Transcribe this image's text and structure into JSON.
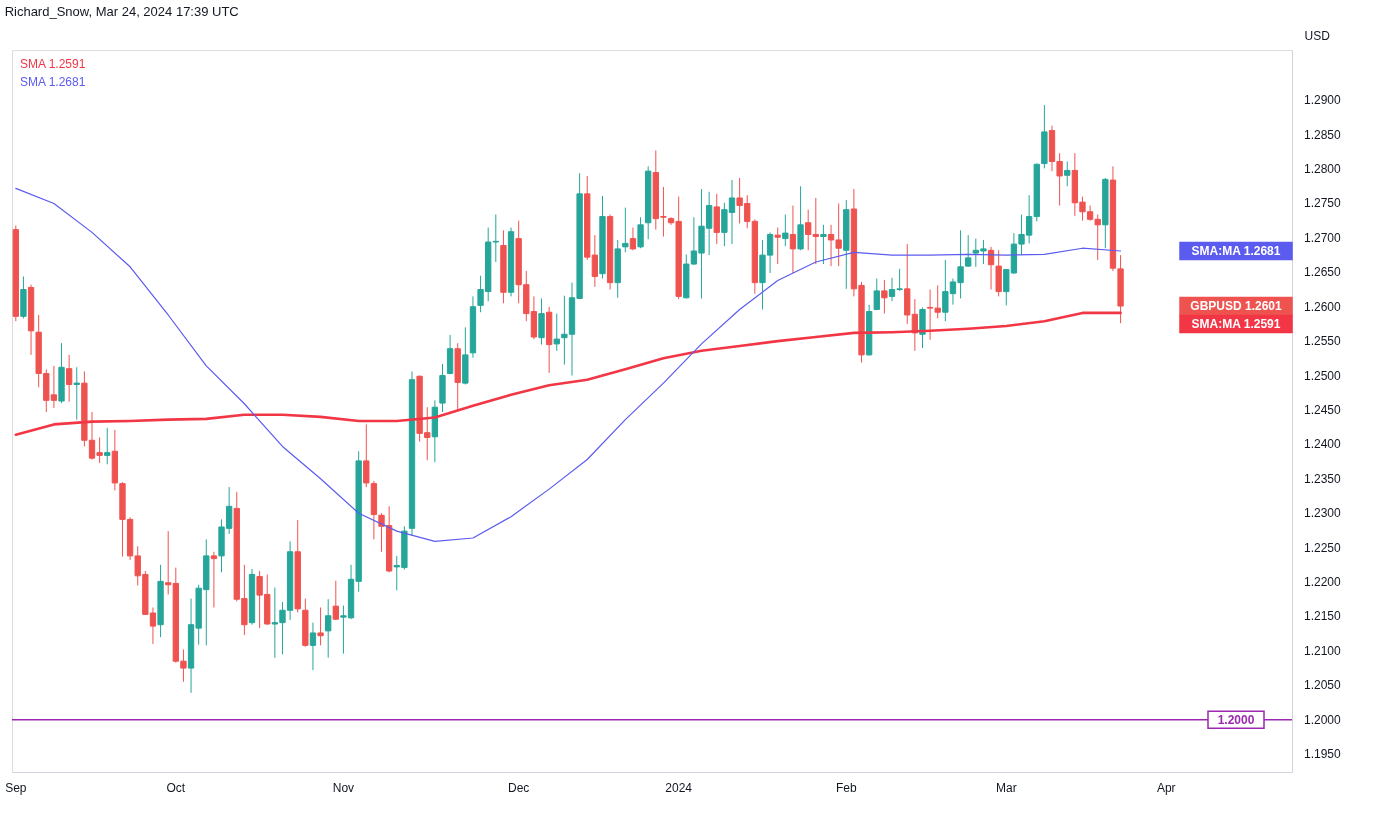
{
  "chart_data": {
    "type": "candlestick",
    "title": "Richard_Snow, Mar 24, 2024 17:39 UTC",
    "ylabel": "USD",
    "categories": [
      "Sep",
      null,
      null,
      null,
      null,
      null,
      null,
      null,
      null,
      null,
      null,
      null,
      null,
      null,
      null,
      null,
      null,
      null,
      null,
      null,
      null,
      "Oct",
      null,
      null,
      null,
      null,
      null,
      null,
      null,
      null,
      null,
      null,
      null,
      null,
      null,
      null,
      null,
      null,
      null,
      null,
      null,
      null,
      null,
      "Nov",
      null,
      null,
      null,
      null,
      null,
      null,
      null,
      null,
      null,
      null,
      null,
      null,
      null,
      null,
      null,
      null,
      null,
      null,
      null,
      null,
      null,
      null,
      "Dec",
      null,
      null,
      null,
      null,
      null,
      null,
      null,
      null,
      null,
      null,
      null,
      null,
      null,
      null,
      null,
      null,
      null,
      null,
      null,
      null,
      "2024",
      null,
      null,
      null,
      null,
      null,
      null,
      null,
      null,
      null,
      null,
      null,
      null,
      null,
      null,
      null,
      null,
      null,
      null,
      null,
      null,
      null,
      "Feb",
      null,
      null,
      null,
      null,
      null,
      null,
      null,
      null,
      null,
      null,
      null,
      null,
      null,
      null,
      null,
      null,
      null,
      null,
      null,
      null,
      "Mar",
      null,
      null,
      null,
      null,
      null,
      null,
      null,
      null,
      null,
      null,
      null,
      null,
      null,
      null,
      null,
      null,
      null,
      null,
      null,
      null,
      "Apr",
      null,
      null,
      null,
      null,
      null,
      null,
      null,
      null,
      null,
      null,
      null,
      null,
      null,
      null,
      null,
      null
    ],
    "ohlc": [
      [
        1.2712,
        1.2718,
        1.2579,
        1.2586
      ],
      [
        1.2586,
        1.2644,
        1.2583,
        1.2625
      ],
      [
        1.2628,
        1.2632,
        1.253,
        1.2565
      ],
      [
        1.2563,
        1.2588,
        1.2483,
        1.2503
      ],
      [
        1.2503,
        1.2509,
        1.2447,
        1.2464
      ],
      [
        1.2472,
        1.2514,
        1.2453,
        1.2464
      ],
      [
        1.2463,
        1.2547,
        1.246,
        1.2512
      ],
      [
        1.251,
        1.253,
        1.2462,
        1.2487
      ],
      [
        1.2487,
        1.2512,
        1.2436,
        1.2489
      ],
      [
        1.2489,
        1.2506,
        1.2397,
        1.2406
      ],
      [
        1.2406,
        1.2447,
        1.2378,
        1.238
      ],
      [
        1.2388,
        1.241,
        1.2373,
        1.2384
      ],
      [
        1.2384,
        1.2424,
        1.2371,
        1.2388
      ],
      [
        1.239,
        1.2421,
        1.2333,
        1.2344
      ],
      [
        1.2343,
        1.2345,
        1.2237,
        1.2291
      ],
      [
        1.2291,
        1.2294,
        1.2232,
        1.2238
      ],
      [
        1.2238,
        1.2252,
        1.2195,
        1.2209
      ],
      [
        1.2211,
        1.2216,
        1.2152,
        1.2153
      ],
      [
        1.2155,
        1.2163,
        1.211,
        1.2136
      ],
      [
        1.2138,
        1.2225,
        1.212,
        1.2201
      ],
      [
        1.2199,
        1.2274,
        1.2182,
        1.2196
      ],
      [
        1.2198,
        1.2221,
        1.2083,
        1.2085
      ],
      [
        1.2085,
        1.2102,
        1.2055,
        1.2075
      ],
      [
        1.2075,
        1.2176,
        1.2039,
        1.2138
      ],
      [
        1.2133,
        1.2196,
        1.2109,
        1.2191
      ],
      [
        1.2189,
        1.2262,
        1.2108,
        1.2238
      ],
      [
        1.2238,
        1.2244,
        1.2163,
        1.2234
      ],
      [
        1.2238,
        1.2291,
        1.2214,
        1.228
      ],
      [
        1.2278,
        1.2338,
        1.227,
        1.231
      ],
      [
        1.2307,
        1.2331,
        1.2172,
        1.2175
      ],
      [
        1.2176,
        1.2225,
        1.2123,
        1.2138
      ],
      [
        1.2141,
        1.2219,
        1.2138,
        1.2211
      ],
      [
        1.2208,
        1.2216,
        1.2133,
        1.2181
      ],
      [
        1.2182,
        1.2211,
        1.2138,
        1.2139
      ],
      [
        1.2139,
        1.2192,
        1.209,
        1.2141
      ],
      [
        1.2141,
        1.2171,
        1.2095,
        1.2159
      ],
      [
        1.2159,
        1.2259,
        1.2145,
        1.2244
      ],
      [
        1.2244,
        1.229,
        1.2156,
        1.2161
      ],
      [
        1.2159,
        1.2176,
        1.2106,
        1.2108
      ],
      [
        1.2108,
        1.2141,
        1.2072,
        1.2126
      ],
      [
        1.2126,
        1.2163,
        1.2108,
        1.2122
      ],
      [
        1.2129,
        1.2175,
        1.209,
        1.2151
      ],
      [
        1.2165,
        1.2202,
        1.2145,
        1.2146
      ],
      [
        1.2149,
        1.2166,
        1.2096,
        1.2151
      ],
      [
        1.2148,
        1.2225,
        1.2146,
        1.2204
      ],
      [
        1.2201,
        1.239,
        1.2186,
        1.2376
      ],
      [
        1.2376,
        1.2429,
        1.2338,
        1.2344
      ],
      [
        1.2343,
        1.2347,
        1.2262,
        1.2298
      ],
      [
        1.2297,
        1.23,
        1.2244,
        1.2281
      ],
      [
        1.2282,
        1.231,
        1.2214,
        1.2216
      ],
      [
        1.2222,
        1.2238,
        1.2188,
        1.2224
      ],
      [
        1.2221,
        1.2281,
        1.2218,
        1.2274
      ],
      [
        1.2278,
        1.2506,
        1.2267,
        1.2494
      ],
      [
        1.2499,
        1.25,
        1.2404,
        1.2416
      ],
      [
        1.2417,
        1.2454,
        1.2377,
        1.241
      ],
      [
        1.2411,
        1.2464,
        1.2374,
        1.2454
      ],
      [
        1.246,
        1.2517,
        1.2447,
        1.25
      ],
      [
        1.2503,
        1.2559,
        1.2502,
        1.2539
      ],
      [
        1.2539,
        1.2547,
        1.245,
        1.249
      ],
      [
        1.2489,
        1.257,
        1.2487,
        1.253
      ],
      [
        1.2533,
        1.2615,
        1.2526,
        1.26
      ],
      [
        1.2602,
        1.2645,
        1.2592,
        1.2625
      ],
      [
        1.2622,
        1.2715,
        1.2608,
        1.2694
      ],
      [
        1.2694,
        1.2734,
        1.2665,
        1.2695
      ],
      [
        1.2689,
        1.2711,
        1.2605,
        1.2621
      ],
      [
        1.2621,
        1.2715,
        1.2615,
        1.2709
      ],
      [
        1.2699,
        1.2725,
        1.2605,
        1.2632
      ],
      [
        1.2632,
        1.2652,
        1.2579,
        1.259
      ],
      [
        1.2593,
        1.2615,
        1.2553,
        1.2556
      ],
      [
        1.2555,
        1.2612,
        1.2545,
        1.259
      ],
      [
        1.2592,
        1.26,
        1.2504,
        1.2545
      ],
      [
        1.2546,
        1.259,
        1.2536,
        1.2553
      ],
      [
        1.2555,
        1.2616,
        1.2516,
        1.256
      ],
      [
        1.256,
        1.2635,
        1.25,
        1.2613
      ],
      [
        1.2612,
        1.2794,
        1.2611,
        1.2764
      ],
      [
        1.2764,
        1.279,
        1.2668,
        1.2672
      ],
      [
        1.2675,
        1.2704,
        1.2629,
        1.2644
      ],
      [
        1.2648,
        1.2761,
        1.2641,
        1.2731
      ],
      [
        1.2731,
        1.2734,
        1.2625,
        1.2635
      ],
      [
        1.2635,
        1.2697,
        1.2613,
        1.2684
      ],
      [
        1.2687,
        1.2744,
        1.2679,
        1.2692
      ],
      [
        1.2699,
        1.2715,
        1.2682,
        1.2684
      ],
      [
        1.2687,
        1.273,
        1.2685,
        1.2719
      ],
      [
        1.2722,
        1.2804,
        1.2698,
        1.2797
      ],
      [
        1.2795,
        1.2827,
        1.2712,
        1.2728
      ],
      [
        1.2731,
        1.2774,
        1.2702,
        1.273
      ],
      [
        1.2728,
        1.273,
        1.2719,
        1.2722
      ],
      [
        1.2724,
        1.276,
        1.2611,
        1.2615
      ],
      [
        1.2613,
        1.2676,
        1.2612,
        1.2662
      ],
      [
        1.2662,
        1.273,
        1.2661,
        1.2681
      ],
      [
        1.2678,
        1.2771,
        1.2612,
        1.2717
      ],
      [
        1.2714,
        1.2767,
        1.2675,
        1.2747
      ],
      [
        1.2745,
        1.2764,
        1.2691,
        1.2708
      ],
      [
        1.2708,
        1.2751,
        1.2688,
        1.2741
      ],
      [
        1.2737,
        1.2784,
        1.2691,
        1.2758
      ],
      [
        1.2758,
        1.2787,
        1.2721,
        1.2747
      ],
      [
        1.275,
        1.2762,
        1.2714,
        1.2724
      ],
      [
        1.2724,
        1.2727,
        1.2619,
        1.2635
      ],
      [
        1.2635,
        1.2697,
        1.2596,
        1.2675
      ],
      [
        1.2675,
        1.2708,
        1.2649,
        1.2705
      ],
      [
        1.2704,
        1.2715,
        1.2662,
        1.2701
      ],
      [
        1.2699,
        1.2734,
        1.2688,
        1.2707
      ],
      [
        1.2705,
        1.2747,
        1.2649,
        1.2684
      ],
      [
        1.2684,
        1.2775,
        1.2682,
        1.2719
      ],
      [
        1.2722,
        1.2741,
        1.2682,
        1.2705
      ],
      [
        1.2705,
        1.2758,
        1.2662,
        1.2702
      ],
      [
        1.2702,
        1.2719,
        1.2662,
        1.2705
      ],
      [
        1.2705,
        1.2719,
        1.2659,
        1.2697
      ],
      [
        1.2697,
        1.275,
        1.2659,
        1.2685
      ],
      [
        1.2682,
        1.2755,
        1.2626,
        1.2741
      ],
      [
        1.2742,
        1.2771,
        1.2615,
        1.2626
      ],
      [
        1.2631,
        1.2636,
        1.2519,
        1.253
      ],
      [
        1.253,
        1.2603,
        1.2529,
        1.2593
      ],
      [
        1.2596,
        1.2641,
        1.2595,
        1.2623
      ],
      [
        1.2623,
        1.2639,
        1.259,
        1.2613
      ],
      [
        1.2615,
        1.2642,
        1.2608,
        1.2625
      ],
      [
        1.2625,
        1.2655,
        1.2623,
        1.2626
      ],
      [
        1.2626,
        1.2691,
        1.2575,
        1.2588
      ],
      [
        1.2589,
        1.2611,
        1.2536,
        1.2562
      ],
      [
        1.256,
        1.2599,
        1.254,
        1.2596
      ],
      [
        1.2599,
        1.2625,
        1.2552,
        1.2598
      ],
      [
        1.2598,
        1.2631,
        1.2583,
        1.2592
      ],
      [
        1.2592,
        1.2668,
        1.2579,
        1.2622
      ],
      [
        1.2619,
        1.2641,
        1.2603,
        1.2636
      ],
      [
        1.2635,
        1.2711,
        1.2612,
        1.2658
      ],
      [
        1.2659,
        1.2704,
        1.2658,
        1.2671
      ],
      [
        1.2678,
        1.2699,
        1.2658,
        1.2682
      ],
      [
        1.2681,
        1.2697,
        1.2662,
        1.2684
      ],
      [
        1.2682,
        1.2687,
        1.2625,
        1.2661
      ],
      [
        1.2659,
        1.2682,
        1.2615,
        1.2622
      ],
      [
        1.2622,
        1.2655,
        1.2602,
        1.2654
      ],
      [
        1.2649,
        1.2707,
        1.2648,
        1.2691
      ],
      [
        1.2691,
        1.2734,
        1.2675,
        1.2705
      ],
      [
        1.2704,
        1.2762,
        1.2692,
        1.2731
      ],
      [
        1.2731,
        1.2808,
        1.2724,
        1.2807
      ],
      [
        1.2808,
        1.2893,
        1.2801,
        1.2854
      ],
      [
        1.2856,
        1.2863,
        1.2797,
        1.2811
      ],
      [
        1.2811,
        1.2823,
        1.2747,
        1.279
      ],
      [
        1.2791,
        1.2811,
        1.2775,
        1.2798
      ],
      [
        1.2798,
        1.2823,
        1.2732,
        1.2751
      ],
      [
        1.2752,
        1.276,
        1.2725,
        1.2738
      ],
      [
        1.2738,
        1.2747,
        1.2725,
        1.2727
      ],
      [
        1.2727,
        1.2734,
        1.2668,
        1.2719
      ],
      [
        1.2719,
        1.2787,
        1.2685,
        1.2785
      ],
      [
        1.2784,
        1.2804,
        1.2652,
        1.2656
      ],
      [
        1.2655,
        1.2675,
        1.2576,
        1.2601
      ],
      null,
      null,
      null,
      null,
      null,
      null,
      null,
      null,
      null,
      null,
      null,
      null,
      null,
      null,
      null,
      null,
      null,
      null,
      null,
      null,
      null,
      null
    ],
    "colors": [
      "#ef5350",
      "#26a69a",
      "#ef5350",
      "#ef5350",
      "#ef5350",
      "#ef5350",
      "#26a69a",
      "#ef5350",
      "#26a69a",
      "#ef5350",
      "#ef5350",
      "#ef5350",
      "#26a69a",
      "#ef5350",
      "#ef5350",
      "#ef5350",
      "#ef5350",
      "#ef5350",
      "#ef5350",
      "#26a69a",
      "#ef5350",
      "#ef5350",
      "#ef5350",
      "#26a69a",
      "#26a69a",
      "#26a69a",
      "#ef5350",
      "#26a69a",
      "#26a69a",
      "#ef5350",
      "#ef5350",
      "#26a69a",
      "#ef5350",
      "#ef5350",
      "#26a69a",
      "#26a69a",
      "#26a69a",
      "#ef5350",
      "#ef5350",
      "#26a69a",
      "#ef5350",
      "#26a69a",
      "#ef5350",
      "#26a69a",
      "#26a69a",
      "#26a69a",
      "#ef5350",
      "#ef5350",
      "#ef5350",
      "#ef5350",
      "#26a69a",
      "#26a69a",
      "#26a69a",
      "#ef5350",
      "#ef5350",
      "#26a69a",
      "#26a69a",
      "#26a69a",
      "#ef5350",
      "#26a69a",
      "#26a69a",
      "#26a69a",
      "#26a69a",
      "#26a69a",
      "#ef5350",
      "#26a69a",
      "#ef5350",
      "#ef5350",
      "#ef5350",
      "#26a69a",
      "#ef5350",
      "#26a69a",
      "#26a69a",
      "#26a69a",
      "#26a69a",
      "#ef5350",
      "#ef5350",
      "#26a69a",
      "#ef5350",
      "#26a69a",
      "#26a69a",
      "#ef5350",
      "#26a69a",
      "#26a69a",
      "#ef5350",
      "#ef5350",
      "#ef5350",
      "#ef5350",
      "#26a69a",
      "#26a69a",
      "#26a69a",
      "#26a69a",
      "#ef5350",
      "#26a69a",
      "#26a69a",
      "#ef5350",
      "#ef5350",
      "#ef5350",
      "#26a69a",
      "#26a69a",
      "#ef5350",
      "#26a69a",
      "#ef5350",
      "#26a69a",
      "#ef5350",
      "#ef5350",
      "#26a69a",
      "#ef5350",
      "#ef5350",
      "#26a69a",
      "#ef5350",
      "#ef5350",
      "#26a69a",
      "#26a69a",
      "#ef5350",
      "#26a69a",
      "#26a69a",
      "#ef5350",
      "#ef5350",
      "#26a69a",
      "#ef5350",
      "#ef5350",
      "#26a69a",
      "#26a69a",
      "#26a69a",
      "#26a69a",
      "#26a69a",
      "#26a69a",
      "#ef5350",
      "#ef5350",
      "#26a69a",
      "#26a69a",
      "#26a69a",
      "#26a69a",
      "#26a69a",
      "#26a69a",
      "#ef5350",
      "#ef5350",
      "#26a69a",
      "#ef5350",
      "#ef5350",
      "#ef5350",
      "#ef5350",
      "#26a69a",
      "#ef5350",
      "#ef5350",
      null,
      null,
      null,
      null,
      null,
      null,
      null,
      null,
      null,
      null,
      null,
      null,
      null,
      null,
      null,
      null,
      null,
      null,
      null,
      null,
      null,
      null
    ],
    "series": [
      {
        "name": "SMA 1.2591",
        "type": "line",
        "color": "#f23645",
        "values": [
          1.2414,
          null,
          null,
          null,
          null,
          1.2429,
          null,
          null,
          null,
          null,
          1.2433,
          null,
          null,
          null,
          null,
          1.2434,
          null,
          null,
          null,
          null,
          1.2436,
          null,
          null,
          null,
          null,
          1.2437,
          null,
          null,
          null,
          null,
          1.2443,
          null,
          null,
          null,
          null,
          1.2443,
          null,
          null,
          null,
          null,
          1.244,
          null,
          null,
          null,
          null,
          1.2434,
          null,
          null,
          null,
          null,
          1.2434,
          null,
          null,
          null,
          null,
          1.2439,
          null,
          null,
          null,
          null,
          1.2456,
          null,
          null,
          null,
          null,
          1.2472,
          null,
          null,
          null,
          null,
          1.2486,
          null,
          null,
          null,
          null,
          1.2494,
          null,
          null,
          null,
          null,
          1.2509,
          null,
          null,
          null,
          null,
          1.2525,
          null,
          null,
          null,
          null,
          1.2536,
          null,
          null,
          null,
          null,
          1.2543,
          null,
          null,
          null,
          null,
          1.255,
          null,
          null,
          null,
          null,
          1.2556,
          null,
          null,
          null,
          null,
          1.2562,
          null,
          null,
          null,
          null,
          1.2563,
          null,
          null,
          null,
          null,
          1.2565,
          null,
          null,
          null,
          null,
          1.2568,
          null,
          null,
          null,
          null,
          1.2572,
          null,
          null,
          null,
          null,
          1.2579,
          null,
          null,
          null,
          null,
          1.2591,
          null,
          null,
          null,
          null,
          1.2591,
          null,
          null,
          null,
          null,
          null,
          null,
          null,
          null,
          null,
          null,
          null,
          null,
          null,
          null,
          null,
          null,
          null,
          null,
          null,
          null,
          null,
          null
        ]
      },
      {
        "name": "SMA 1.2681",
        "type": "line",
        "color": "#5b5bf0",
        "values": [
          1.2772,
          null,
          null,
          null,
          null,
          1.275,
          null,
          null,
          null,
          null,
          1.2708,
          null,
          null,
          null,
          null,
          1.2658,
          null,
          null,
          null,
          null,
          1.2588,
          null,
          null,
          null,
          null,
          1.2514,
          null,
          null,
          null,
          null,
          1.2459,
          null,
          null,
          null,
          null,
          1.2397,
          null,
          null,
          null,
          null,
          1.235,
          null,
          null,
          null,
          null,
          1.23,
          null,
          null,
          null,
          null,
          1.2274,
          null,
          null,
          null,
          null,
          1.2259,
          null,
          null,
          null,
          null,
          1.2264,
          null,
          null,
          null,
          null,
          1.2295,
          null,
          null,
          null,
          null,
          1.2335,
          null,
          null,
          null,
          null,
          1.2378,
          null,
          null,
          null,
          null,
          1.2436,
          null,
          null,
          null,
          null,
          1.2489,
          null,
          null,
          null,
          null,
          1.2546,
          null,
          null,
          null,
          null,
          1.2596,
          null,
          null,
          null,
          null,
          1.2638,
          null,
          null,
          null,
          null,
          1.2665,
          null,
          null,
          null,
          null,
          1.2679,
          null,
          null,
          null,
          null,
          1.2675,
          null,
          null,
          null,
          null,
          1.2675,
          null,
          null,
          null,
          null,
          1.2676,
          null,
          null,
          null,
          null,
          1.2675,
          null,
          null,
          null,
          null,
          1.2676,
          null,
          null,
          null,
          null,
          1.2685,
          null,
          null,
          null,
          null,
          1.2681,
          null,
          null,
          null,
          null,
          null,
          null,
          null,
          null,
          null,
          null,
          null,
          null,
          null,
          null,
          null,
          null,
          null,
          null,
          null,
          null,
          null,
          null
        ]
      }
    ],
    "ylim": [
      1.1924,
      1.2973
    ],
    "yticks": [
      {
        "value": 1.195,
        "label": "1.1950"
      },
      {
        "value": 1.2,
        "label": "1.2000"
      },
      {
        "value": 1.205,
        "label": "1.2050"
      },
      {
        "value": 1.21,
        "label": "1.2100"
      },
      {
        "value": 1.215,
        "label": "1.2150"
      },
      {
        "value": 1.22,
        "label": "1.2200"
      },
      {
        "value": 1.225,
        "label": "1.2250"
      },
      {
        "value": 1.23,
        "label": "1.2300"
      },
      {
        "value": 1.235,
        "label": "1.2350"
      },
      {
        "value": 1.24,
        "label": "1.2400"
      },
      {
        "value": 1.245,
        "label": "1.2450"
      },
      {
        "value": 1.25,
        "label": "1.2500"
      },
      {
        "value": 1.255,
        "label": "1.2550"
      },
      {
        "value": 1.26,
        "label": "1.2600"
      },
      {
        "value": 1.265,
        "label": "1.2650"
      },
      {
        "value": 1.27,
        "label": "1.2700"
      },
      {
        "value": 1.275,
        "label": "1.2750"
      },
      {
        "value": 1.28,
        "label": "1.2800"
      },
      {
        "value": 1.285,
        "label": "1.2850"
      },
      {
        "value": 1.29,
        "label": "1.2900"
      }
    ],
    "ref_lines": [
      {
        "axis": "y",
        "value": 1.2,
        "label": "1.2000",
        "color": "#9c27b0"
      }
    ],
    "annotations": [
      "SMA:MA 1.2681",
      "GBPUSD 1.2601",
      "SMA:MA 1.2591"
    ],
    "grid": false,
    "legend": "top left"
  }
}
